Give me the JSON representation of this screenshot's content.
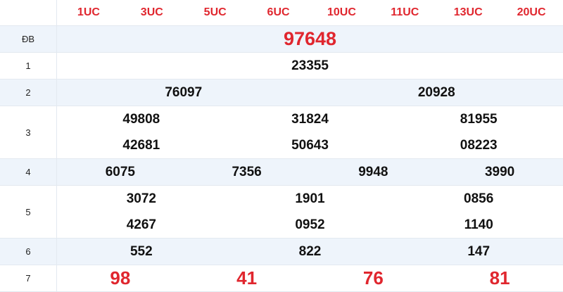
{
  "header": [
    "1UC",
    "3UC",
    "5UC",
    "6UC",
    "10UC",
    "11UC",
    "13UC",
    "20UC"
  ],
  "prizes": [
    {
      "label": "ĐB",
      "lines": [
        [
          "97648"
        ]
      ]
    },
    {
      "label": "1",
      "lines": [
        [
          "23355"
        ]
      ]
    },
    {
      "label": "2",
      "lines": [
        [
          "76097",
          "20928"
        ]
      ]
    },
    {
      "label": "3",
      "lines": [
        [
          "49808",
          "31824",
          "81955"
        ],
        [
          "42681",
          "50643",
          "08223"
        ]
      ]
    },
    {
      "label": "4",
      "lines": [
        [
          "6075",
          "7356",
          "9948",
          "3990"
        ]
      ]
    },
    {
      "label": "5",
      "lines": [
        [
          "3072",
          "1901",
          "0856"
        ],
        [
          "4267",
          "0952",
          "1140"
        ]
      ]
    },
    {
      "label": "6",
      "lines": [
        [
          "552",
          "822",
          "147"
        ]
      ]
    },
    {
      "label": "7",
      "lines": [
        [
          "98",
          "41",
          "76",
          "81"
        ]
      ]
    }
  ],
  "colors": {
    "accent": "#e0262e",
    "alt_row": "#eef4fb"
  }
}
